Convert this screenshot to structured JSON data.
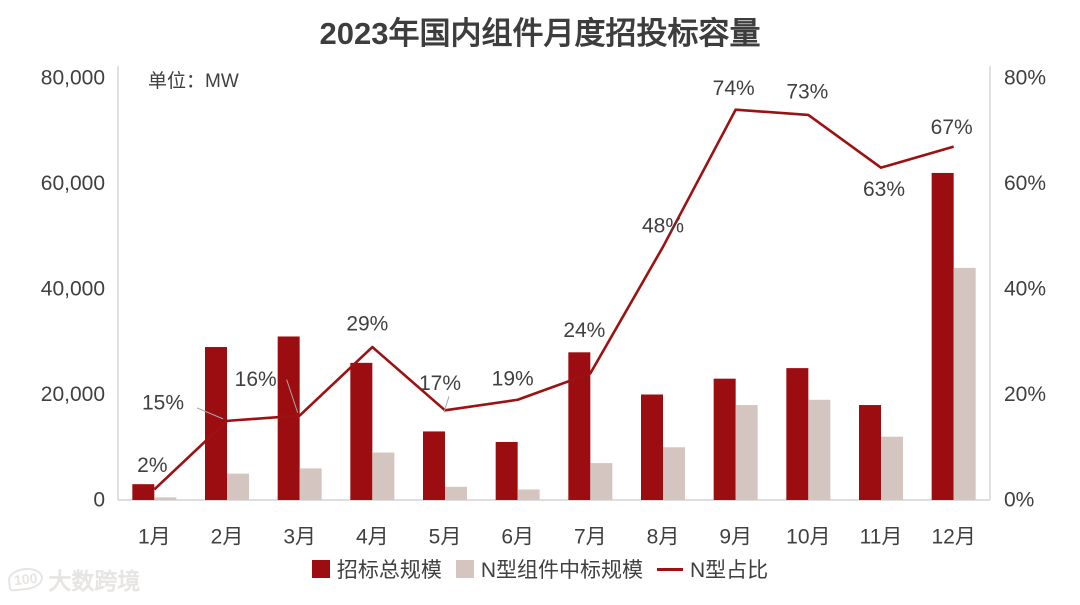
{
  "title": "2023年国内组件月度招投标容量",
  "unit_label": "单位：MW",
  "watermark": {
    "logo_text": "100",
    "text": "大数跨境"
  },
  "colors": {
    "bar_total": "#9c0d12",
    "bar_ntype": "#d5c5c1",
    "line_share": "#9c1212",
    "text": "#404040",
    "axis": "#d9d9d9"
  },
  "legend": [
    {
      "label": "招标总规模",
      "type": "square",
      "color": "#9c0d12"
    },
    {
      "label": "N型组件中标规模",
      "type": "square",
      "color": "#d5c5c1"
    },
    {
      "label": "N型占比",
      "type": "line",
      "color": "#9c1212"
    }
  ],
  "chart_data": {
    "type": "bar",
    "subtype": "bar+line combo, dual axis",
    "title": "2023年国内组件月度招投标容量",
    "categories": [
      "1月",
      "2月",
      "3月",
      "4月",
      "5月",
      "6月",
      "7月",
      "8月",
      "9月",
      "10月",
      "11月",
      "12月"
    ],
    "series": [
      {
        "name": "招标总规模",
        "type": "bar",
        "axis": "left",
        "color": "#9c0d12",
        "values": [
          3000,
          29000,
          31000,
          26000,
          13000,
          11000,
          28000,
          20000,
          23000,
          25000,
          18000,
          62000
        ]
      },
      {
        "name": "N型组件中标规模",
        "type": "bar",
        "axis": "left",
        "color": "#d5c5c1",
        "values": [
          500,
          5000,
          6000,
          9000,
          2500,
          2000,
          7000,
          10000,
          18000,
          19000,
          12000,
          44000
        ]
      },
      {
        "name": "N型占比",
        "type": "line",
        "axis": "right",
        "color": "#9c1212",
        "values": [
          2,
          15,
          16,
          29,
          17,
          19,
          24,
          48,
          74,
          73,
          63,
          67
        ],
        "point_labels": [
          "2%",
          "15%",
          "16%",
          "29%",
          "17%",
          "19%",
          "24%",
          "48%",
          "74%",
          "73%",
          "63%",
          "67%"
        ]
      }
    ],
    "left_axis": {
      "unit": "MW",
      "range": [
        0,
        80000
      ],
      "ticks": [
        "80,000",
        "60,000",
        "40,000",
        "20,000",
        "0"
      ]
    },
    "right_axis": {
      "unit": "%",
      "range": [
        0,
        80
      ],
      "ticks": [
        "80%",
        "60%",
        "40%",
        "20%",
        "0%"
      ]
    },
    "grid": false,
    "legend_position": "bottom"
  }
}
